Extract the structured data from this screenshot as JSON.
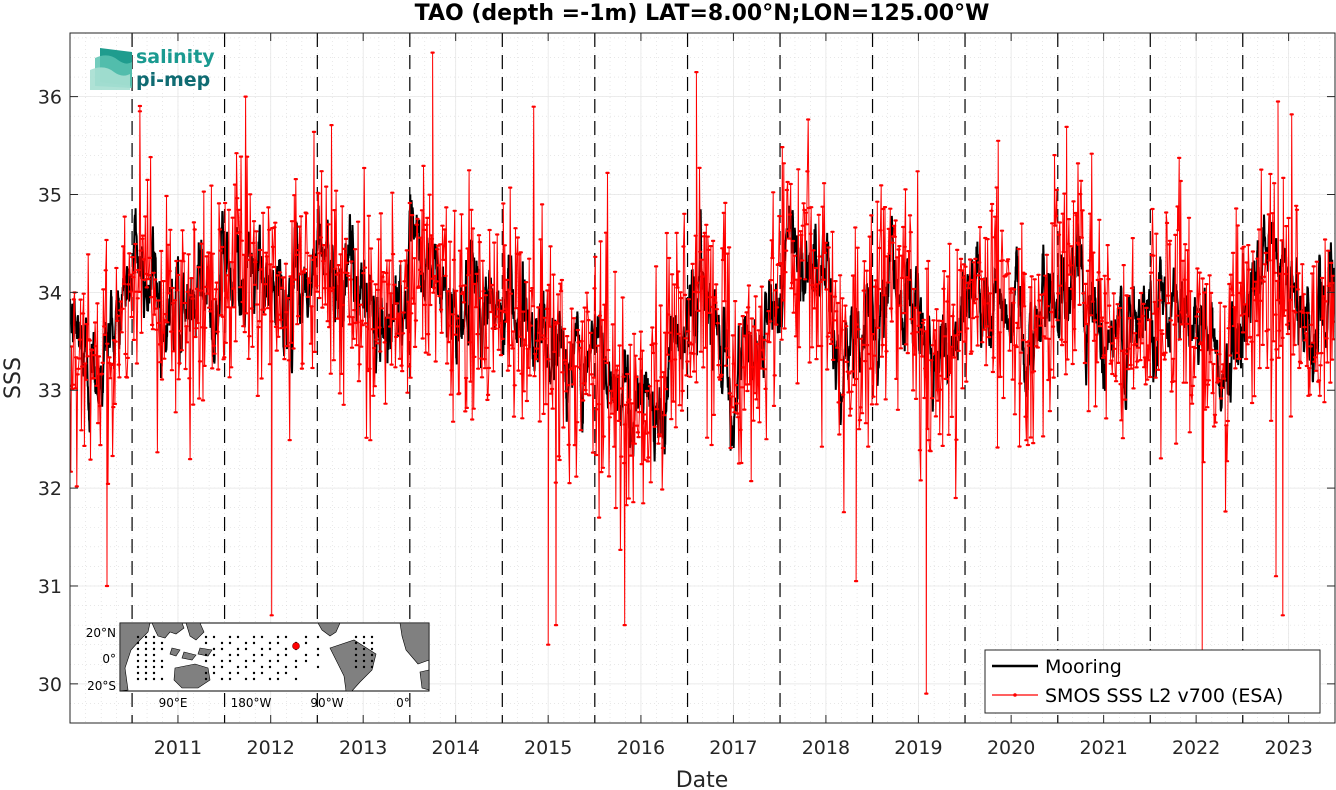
{
  "chart_data": {
    "type": "line",
    "title": "TAO (depth =-1m) LAT=8.00°N;LON=125.00°W",
    "xlabel": "Date",
    "ylabel": "SSS",
    "xlim": [
      "2010-05-01",
      "2023-12-31"
    ],
    "ylim": [
      29.6,
      36.65
    ],
    "yticks": [
      30,
      31,
      32,
      33,
      34,
      35,
      36
    ],
    "xticks": [
      "2011",
      "2012",
      "2013",
      "2014",
      "2015",
      "2016",
      "2017",
      "2018",
      "2019",
      "2020",
      "2021",
      "2022",
      "2023"
    ],
    "year_boundaries": [
      "2011-01-01",
      "2012-01-01",
      "2013-01-01",
      "2014-01-01",
      "2015-01-01",
      "2016-01-01",
      "2017-01-01",
      "2018-01-01",
      "2019-01-01",
      "2020-01-01",
      "2021-01-01",
      "2022-01-01",
      "2023-01-01"
    ],
    "grid": true,
    "legend_position": "bottom-right",
    "series": [
      {
        "name": "Mooring",
        "color": "#000000",
        "mean_by_month": [
          [
            "2010-05",
            33.6
          ],
          [
            "2010-07",
            33.2
          ],
          [
            "2010-09",
            33.4
          ],
          [
            "2010-11",
            33.9
          ],
          [
            "2011-01",
            34.3
          ],
          [
            "2011-03",
            34.2
          ],
          [
            "2011-05",
            33.9
          ],
          [
            "2011-07",
            33.7
          ],
          [
            "2011-09",
            33.8
          ],
          [
            "2011-11",
            34.0
          ],
          [
            "2012-01",
            34.4
          ],
          [
            "2012-03",
            34.3
          ],
          [
            "2012-05",
            34.0
          ],
          [
            "2012-07",
            33.9
          ],
          [
            "2012-09",
            33.9
          ],
          [
            "2012-11",
            34.1
          ],
          [
            "2013-01",
            34.4
          ],
          [
            "2013-03",
            34.3
          ],
          [
            "2013-05",
            34.1
          ],
          [
            "2013-07",
            33.9
          ],
          [
            "2013-09",
            33.8
          ],
          [
            "2013-11",
            34.0
          ],
          [
            "2014-01",
            34.1
          ],
          [
            "2014-03",
            34.2
          ],
          [
            "2014-05",
            34.0
          ],
          [
            "2014-07",
            33.9
          ],
          [
            "2014-09",
            33.7
          ],
          [
            "2014-11",
            33.8
          ],
          [
            "2015-01",
            33.9
          ],
          [
            "2015-03",
            33.9
          ],
          [
            "2015-05",
            33.7
          ],
          [
            "2015-07",
            33.5
          ],
          [
            "2015-09",
            33.3
          ],
          [
            "2015-11",
            33.3
          ],
          [
            "2016-01",
            33.4
          ],
          [
            "2016-03",
            33.2
          ],
          [
            "2016-05",
            32.9
          ],
          [
            "2016-07",
            33.0
          ],
          [
            "2016-09",
            33.1
          ],
          [
            "2016-11",
            33.5
          ],
          [
            "2017-01",
            33.9
          ],
          [
            "2017-03",
            34.2
          ],
          [
            "2017-05",
            33.6
          ],
          [
            "2017-07",
            33.1
          ],
          [
            "2017-09",
            33.3
          ],
          [
            "2017-11",
            33.6
          ],
          [
            "2018-01",
            34.2
          ],
          [
            "2018-03",
            34.5
          ],
          [
            "2018-05",
            34.3
          ],
          [
            "2018-07",
            33.9
          ],
          [
            "2018-09",
            33.4
          ],
          [
            "2018-11",
            33.3
          ],
          [
            "2019-01",
            33.9
          ],
          [
            "2019-03",
            34.1
          ],
          [
            "2019-05",
            34.0
          ],
          [
            "2019-07",
            33.6
          ],
          [
            "2019-09",
            33.3
          ],
          [
            "2019-11",
            33.6
          ],
          [
            "2020-01",
            33.9
          ],
          [
            "2020-03",
            34.0
          ],
          [
            "2020-05",
            33.9
          ],
          [
            "2020-07",
            33.7
          ],
          [
            "2020-09",
            33.6
          ],
          [
            "2020-11",
            33.8
          ],
          [
            "2021-01",
            34.1
          ],
          [
            "2021-03",
            34.2
          ],
          [
            "2021-05",
            34.0
          ],
          [
            "2021-07",
            33.6
          ],
          [
            "2021-09",
            33.4
          ],
          [
            "2021-11",
            33.5
          ],
          [
            "2022-01",
            33.9
          ],
          [
            "2022-03",
            34.1
          ],
          [
            "2022-05",
            34.0
          ],
          [
            "2022-07",
            33.6
          ],
          [
            "2022-09",
            33.3
          ],
          [
            "2022-11",
            33.4
          ],
          [
            "2023-01",
            33.8
          ],
          [
            "2023-03",
            34.1
          ],
          [
            "2023-05",
            34.3
          ],
          [
            "2023-07",
            34.0
          ],
          [
            "2023-09",
            33.7
          ],
          [
            "2023-11",
            33.8
          ]
        ]
      },
      {
        "name": "SMOS SSS L2 v700 (ESA)",
        "color": "#ff0000",
        "marker": ".",
        "mean_by_month": [
          [
            "2010-05",
            33.5
          ],
          [
            "2010-07",
            33.1
          ],
          [
            "2010-09",
            33.3
          ],
          [
            "2010-11",
            33.8
          ],
          [
            "2011-01",
            34.3
          ],
          [
            "2011-03",
            34.2
          ],
          [
            "2011-05",
            33.9
          ],
          [
            "2011-07",
            33.7
          ],
          [
            "2011-09",
            33.7
          ],
          [
            "2011-11",
            34.0
          ],
          [
            "2012-01",
            34.4
          ],
          [
            "2012-03",
            34.2
          ],
          [
            "2012-05",
            34.0
          ],
          [
            "2012-07",
            33.9
          ],
          [
            "2012-09",
            33.8
          ],
          [
            "2012-11",
            34.0
          ],
          [
            "2013-01",
            34.3
          ],
          [
            "2013-03",
            34.3
          ],
          [
            "2013-05",
            34.0
          ],
          [
            "2013-07",
            33.8
          ],
          [
            "2013-09",
            33.8
          ],
          [
            "2013-11",
            34.0
          ],
          [
            "2014-01",
            34.1
          ],
          [
            "2014-03",
            34.2
          ],
          [
            "2014-05",
            33.9
          ],
          [
            "2014-07",
            33.8
          ],
          [
            "2014-09",
            33.7
          ],
          [
            "2014-11",
            33.7
          ],
          [
            "2015-01",
            33.8
          ],
          [
            "2015-03",
            33.8
          ],
          [
            "2015-05",
            33.6
          ],
          [
            "2015-07",
            33.4
          ],
          [
            "2015-09",
            33.2
          ],
          [
            "2015-11",
            33.2
          ],
          [
            "2016-01",
            33.3
          ],
          [
            "2016-03",
            33.1
          ],
          [
            "2016-05",
            32.8
          ],
          [
            "2016-07",
            32.9
          ],
          [
            "2016-09",
            33.1
          ],
          [
            "2016-11",
            33.5
          ],
          [
            "2017-01",
            33.9
          ],
          [
            "2017-03",
            34.2
          ],
          [
            "2017-05",
            33.6
          ],
          [
            "2017-07",
            33.2
          ],
          [
            "2017-09",
            33.3
          ],
          [
            "2017-11",
            33.6
          ],
          [
            "2018-01",
            34.2
          ],
          [
            "2018-03",
            34.5
          ],
          [
            "2018-05",
            34.3
          ],
          [
            "2018-07",
            33.8
          ],
          [
            "2018-09",
            33.3
          ],
          [
            "2018-11",
            33.3
          ],
          [
            "2019-01",
            33.8
          ],
          [
            "2019-03",
            34.1
          ],
          [
            "2019-05",
            34.0
          ],
          [
            "2019-07",
            33.5
          ],
          [
            "2019-09",
            33.3
          ],
          [
            "2019-11",
            33.6
          ],
          [
            "2020-01",
            33.9
          ],
          [
            "2020-03",
            34.0
          ],
          [
            "2020-05",
            33.9
          ],
          [
            "2020-07",
            33.6
          ],
          [
            "2020-09",
            33.5
          ],
          [
            "2020-11",
            33.8
          ],
          [
            "2021-01",
            34.1
          ],
          [
            "2021-03",
            34.2
          ],
          [
            "2021-05",
            33.9
          ],
          [
            "2021-07",
            33.5
          ],
          [
            "2021-09",
            33.4
          ],
          [
            "2021-11",
            33.5
          ],
          [
            "2022-01",
            33.9
          ],
          [
            "2022-03",
            34.1
          ],
          [
            "2022-05",
            34.0
          ],
          [
            "2022-07",
            33.5
          ],
          [
            "2022-09",
            33.2
          ],
          [
            "2022-11",
            33.4
          ],
          [
            "2023-01",
            33.8
          ],
          [
            "2023-03",
            34.1
          ],
          [
            "2023-05",
            34.3
          ],
          [
            "2023-07",
            34.0
          ],
          [
            "2023-09",
            33.6
          ],
          [
            "2023-11",
            33.7
          ]
        ],
        "noise_std": 0.6,
        "extremes": [
          [
            "2010-09-24",
            31.0
          ],
          [
            "2011-02-01",
            35.85
          ],
          [
            "2012-07-05",
            30.7
          ],
          [
            "2014-04-01",
            36.45
          ],
          [
            "2015-07-01",
            30.4
          ],
          [
            "2015-08-01",
            30.6
          ],
          [
            "2016-04-28",
            30.6
          ],
          [
            "2017-02-05",
            36.25
          ],
          [
            "2018-10-28",
            31.05
          ],
          [
            "2019-08-01",
            29.9
          ],
          [
            "2022-07-25",
            30.3
          ],
          [
            "2023-05-20",
            35.95
          ],
          [
            "2023-05-12",
            31.1
          ],
          [
            "2023-06-08",
            30.7
          ]
        ]
      }
    ],
    "logo": {
      "line1": "salinity",
      "line2": "pi-mep"
    },
    "inset_map": {
      "lat_ticks": [
        "20°N",
        "0°",
        "20°S"
      ],
      "lon_ticks": [
        "90°E",
        "180°W",
        "90°W",
        "0°"
      ],
      "marker_color": "#ff0000"
    }
  }
}
